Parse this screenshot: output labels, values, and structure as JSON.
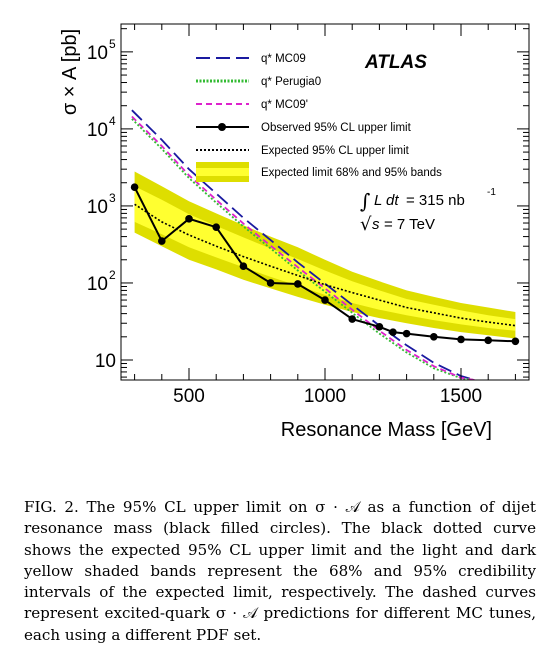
{
  "chart_data": {
    "type": "line",
    "xlabel": "Resonance Mass [GeV]",
    "ylabel": "σ × A [pb]",
    "xlim": [
      250,
      1750
    ],
    "ylim": [
      5.5,
      230000
    ],
    "y_scale": "log",
    "x_ticks": [
      500,
      1000,
      1500
    ],
    "x_tick_labels": [
      "500",
      "1000",
      "1500"
    ],
    "y_ticks": [
      10,
      100,
      1000,
      10000,
      100000
    ],
    "y_tick_labels": [
      {
        "base": "10",
        "exp": ""
      },
      {
        "base": "10",
        "exp": "2"
      },
      {
        "base": "10",
        "exp": "3"
      },
      {
        "base": "10",
        "exp": "4"
      },
      {
        "base": "10",
        "exp": "5"
      }
    ],
    "experiment_label": "ATLAS",
    "luminosity": {
      "integral": "∫",
      "L": "L",
      "dt": "dt",
      "value": "= 315 nb",
      "exp": "-1"
    },
    "energy": {
      "sqrt": "√",
      "s": "s",
      "value": "= 7 TeV"
    },
    "legend_position": "top-right",
    "bands": {
      "x": [
        300,
        400,
        500,
        600,
        700,
        800,
        900,
        1000,
        1100,
        1200,
        1300,
        1400,
        1500,
        1600,
        1700
      ],
      "outer_upper": [
        2800,
        1800,
        1150,
        800,
        560,
        400,
        290,
        200,
        140,
        105,
        80,
        66,
        55,
        48,
        42
      ],
      "inner_upper": [
        1800,
        1200,
        780,
        550,
        390,
        280,
        205,
        145,
        105,
        80,
        62,
        52,
        44,
        38,
        34
      ],
      "inner_lower": [
        620,
        430,
        290,
        215,
        160,
        120,
        92,
        70,
        55,
        45,
        38,
        33,
        29,
        26,
        24
      ],
      "outer_lower": [
        450,
        300,
        200,
        150,
        110,
        85,
        66,
        52,
        42,
        35,
        30,
        26,
        23,
        21,
        19
      ],
      "colors": {
        "outer": "#dede00",
        "inner": "#ffff30"
      }
    },
    "series": [
      {
        "name": "q* MC09",
        "style": "long-dash",
        "color": "#1a1aa0",
        "x": [
          290,
          400,
          500,
          600,
          700,
          800,
          900,
          1000,
          1100,
          1200,
          1300,
          1400,
          1500,
          1550
        ],
        "values": [
          17500,
          7200,
          3000,
          1450,
          700,
          360,
          185,
          98,
          52,
          28,
          15.5,
          9.2,
          6.2,
          5.5
        ]
      },
      {
        "name": "q* Perugia0",
        "style": "dotted",
        "color": "#33bb33",
        "x": [
          290,
          400,
          500,
          600,
          700,
          800,
          900,
          1000,
          1100,
          1200,
          1300,
          1400,
          1500,
          1550
        ],
        "values": [
          13500,
          5500,
          2300,
          1100,
          540,
          280,
          145,
          77,
          41,
          22,
          12.5,
          7.8,
          5.8,
          5.5
        ]
      },
      {
        "name": "q* MC09'",
        "style": "short-dash",
        "color": "#dd22cc",
        "x": [
          290,
          400,
          500,
          600,
          700,
          800,
          900,
          1000,
          1100,
          1200,
          1300,
          1400,
          1500,
          1550
        ],
        "values": [
          14500,
          6000,
          2500,
          1200,
          590,
          305,
          160,
          85,
          45,
          24,
          13.5,
          8.3,
          5.9,
          5.5
        ]
      },
      {
        "name": "Observed 95% CL upper limit",
        "style": "solid-markers",
        "color": "#000000",
        "x": [
          300,
          400,
          500,
          600,
          700,
          800,
          900,
          1000,
          1100,
          1200,
          1250,
          1300,
          1400,
          1500,
          1600,
          1700
        ],
        "values": [
          1750,
          350,
          680,
          530,
          165,
          100,
          97,
          60,
          34,
          27,
          23,
          22,
          20,
          18.5,
          18,
          17.5
        ]
      },
      {
        "name": "Expected 95% CL upper limit",
        "style": "dotted",
        "color": "#000000",
        "x": [
          300,
          400,
          500,
          600,
          700,
          800,
          900,
          1000,
          1100,
          1200,
          1300,
          1400,
          1500,
          1600,
          1700
        ],
        "values": [
          1050,
          620,
          420,
          300,
          220,
          165,
          125,
          95,
          75,
          60,
          48,
          41,
          35,
          31,
          28
        ]
      }
    ],
    "legend": [
      {
        "label": "q* MC09",
        "style": "long-dash",
        "color": "#1a1aa0"
      },
      {
        "label": "q* Perugia0",
        "style": "dotted-thick",
        "color": "#33bb33"
      },
      {
        "label": "q* MC09'",
        "style": "short-dash",
        "color": "#dd22cc"
      },
      {
        "label": "Observed 95% CL upper limit",
        "style": "solid-markers",
        "color": "#000000"
      },
      {
        "label": "Expected 95% CL upper limit",
        "style": "dotted",
        "color": "#000000"
      },
      {
        "label": "Expected limit 68% and 95% bands",
        "style": "band",
        "color": "#ffff30"
      }
    ]
  },
  "caption": "FIG. 2. The 95% CL upper limit on σ · 𝒜 as a function of dijet resonance mass (black filled circles). The black dotted curve shows the expected 95% CL upper limit and the light and dark yellow shaded bands represent the 68% and 95% credibility intervals of the expected limit, respectively. The dashed curves represent excited-quark σ · 𝒜 predictions for different MC tunes, each using a different PDF set."
}
